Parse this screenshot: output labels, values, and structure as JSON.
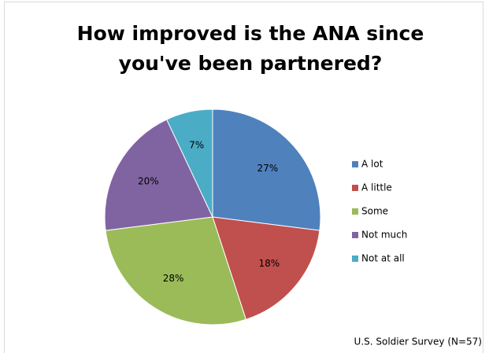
{
  "chart_data": {
    "type": "pie",
    "title": "How improved is the ANA since you've been partnered?",
    "categories": [
      "A lot",
      "A little",
      "Some",
      "Not much",
      "Not at all"
    ],
    "values": [
      27,
      18,
      28,
      20,
      7
    ],
    "value_labels": [
      "27%",
      "18%",
      "28%",
      "20%",
      "7%"
    ],
    "colors": [
      "#4f81bd",
      "#c0504d",
      "#9bbb59",
      "#8064a2",
      "#4bacc6"
    ],
    "legend": "right",
    "note": "U.S. Soldier Survey (N=57)"
  }
}
